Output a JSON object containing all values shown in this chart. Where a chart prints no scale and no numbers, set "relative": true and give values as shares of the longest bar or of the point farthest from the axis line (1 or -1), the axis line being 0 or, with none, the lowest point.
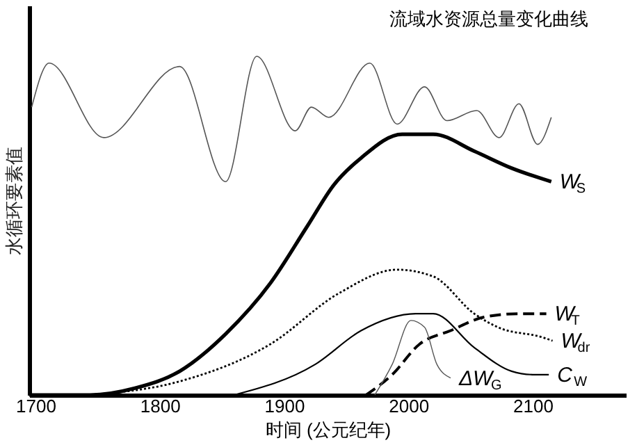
{
  "chart_data": {
    "type": "line",
    "relative": true,
    "xlabel": "时间 (公元纪年)",
    "ylabel": "水循环要素值",
    "xlim": [
      1695,
      2175
    ],
    "xticks": [
      1700,
      1800,
      1900,
      2000,
      2100
    ],
    "marker": "none",
    "series": [
      {
        "name": "流域水资源总量变化曲线",
        "color": "#555555",
        "line_style": "solid",
        "x": [
          1697,
          1711,
          1755,
          1816,
          1853,
          1878,
          1909,
          1922,
          1936,
          1969,
          1991,
          2013,
          2031,
          2055,
          2073,
          2089,
          2104,
          2115
        ],
        "values": [
          0.85,
          0.98,
          0.76,
          0.97,
          0.63,
          1.0,
          0.78,
          0.85,
          0.82,
          0.98,
          0.8,
          0.91,
          0.81,
          0.84,
          0.76,
          0.86,
          0.74,
          0.82
        ]
      },
      {
        "name": "W$_{S}$",
        "color": "#000000",
        "line_style": "solid",
        "x": [
          1695,
          1744,
          1780,
          1816,
          1853,
          1889,
          1919,
          1940,
          1962,
          1995,
          2020,
          2053,
          2083,
          2115
        ],
        "values": [
          0,
          0.0,
          0.02,
          0.07,
          0.18,
          0.33,
          0.5,
          0.62,
          0.7,
          0.77,
          0.77,
          0.72,
          0.67,
          0.63
        ]
      },
      {
        "name": "W$_{T}$",
        "color": "#000000",
        "line_style": "dashed",
        "x": [
          1966,
          1987,
          2009,
          2034,
          2061,
          2089,
          2111
        ],
        "values": [
          0,
          0.06,
          0.15,
          0.19,
          0.23,
          0.24,
          0.24
        ]
      },
      {
        "name": "W$_{dr}$",
        "color": "#000000",
        "line_style": "dotted",
        "x": [
          1744,
          1816,
          1889,
          1944,
          1991,
          2020,
          2053,
          2072,
          2108,
          2116
        ],
        "values": [
          0,
          0.04,
          0.15,
          0.3,
          0.37,
          0.35,
          0.24,
          0.2,
          0.17,
          0.16
        ]
      },
      {
        "name": "C$_{W}$",
        "color": "#000000",
        "line_style": "solid",
        "x": [
          1860,
          1925,
          1962,
          2006,
          2020,
          2053,
          2083,
          2100,
          2113
        ],
        "values": [
          0,
          0.09,
          0.19,
          0.24,
          0.24,
          0.14,
          0.07,
          0.06,
          0.06
        ]
      },
      {
        "name": "ΔW$_{G}$",
        "color": "#555555",
        "line_style": "solid",
        "x": [
          1973,
          1987,
          2002,
          2013,
          2023,
          2034
        ],
        "values": [
          0,
          0.09,
          0.22,
          0.2,
          0.09,
          0.05
        ]
      }
    ]
  }
}
